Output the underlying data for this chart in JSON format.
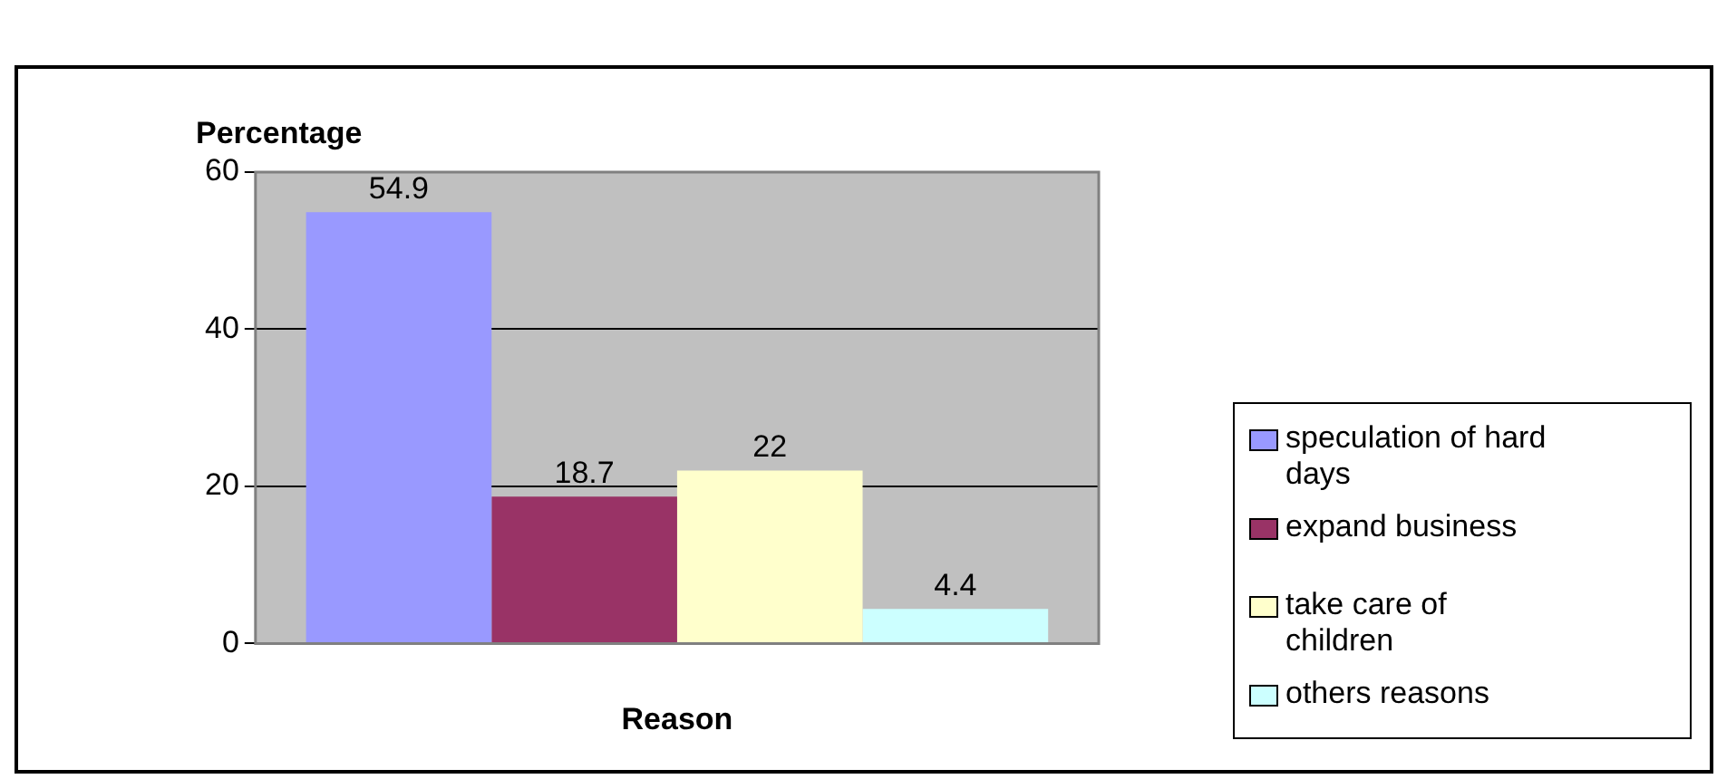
{
  "chart_data": {
    "type": "bar",
    "xlabel": "Reason",
    "ylabel": "Percentage",
    "categories": [
      null
    ],
    "series": [
      {
        "name": "speculation of hard days",
        "color": "#9999ff",
        "values": [
          54.9
        ]
      },
      {
        "name": "expand business",
        "color": "#993366",
        "values": [
          18.7
        ]
      },
      {
        "name": "take care of children",
        "color": "#ffffcc",
        "values": [
          22
        ]
      },
      {
        "name": "others reasons",
        "color": "#ccffff",
        "values": [
          4.4
        ]
      }
    ],
    "ylim": [
      0,
      60
    ],
    "yticks": [
      0,
      20,
      40,
      60
    ],
    "grid": "y",
    "legend": "right",
    "data_labels": true
  }
}
